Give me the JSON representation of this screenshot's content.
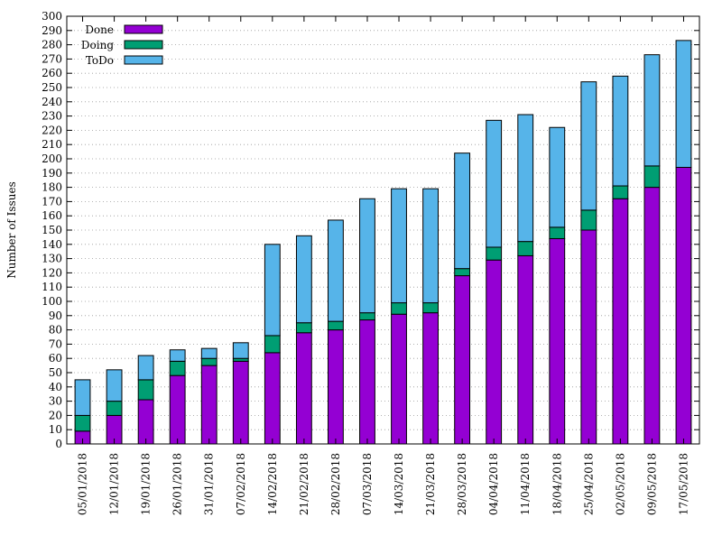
{
  "chart_data": {
    "type": "bar",
    "stacked": true,
    "ylabel": "Number of Issues",
    "ylim": [
      0,
      300
    ],
    "ytick_step": 10,
    "grid": true,
    "legend_position": "top-left",
    "categories": [
      "05/01/2018",
      "12/01/2018",
      "19/01/2018",
      "26/01/2018",
      "31/01/2018",
      "07/02/2018",
      "14/02/2018",
      "21/02/2018",
      "28/02/2018",
      "07/03/2018",
      "14/03/2018",
      "21/03/2018",
      "28/03/2018",
      "04/04/2018",
      "11/04/2018",
      "18/04/2018",
      "25/04/2018",
      "02/05/2018",
      "09/05/2018",
      "17/05/2018"
    ],
    "series": [
      {
        "name": "Done",
        "color": "#9400d3",
        "values": [
          9,
          20,
          31,
          48,
          55,
          58,
          64,
          78,
          80,
          87,
          91,
          92,
          118,
          129,
          132,
          144,
          150,
          172,
          180,
          194
        ]
      },
      {
        "name": "Doing",
        "color": "#009e73",
        "values": [
          11,
          10,
          14,
          10,
          5,
          2,
          12,
          7,
          6,
          5,
          8,
          7,
          5,
          9,
          10,
          8,
          14,
          9,
          15,
          0
        ]
      },
      {
        "name": "ToDo",
        "color": "#56b4e9",
        "values": [
          25,
          22,
          17,
          8,
          7,
          11,
          64,
          61,
          71,
          80,
          80,
          80,
          81,
          89,
          89,
          70,
          90,
          77,
          78,
          89
        ]
      }
    ]
  }
}
